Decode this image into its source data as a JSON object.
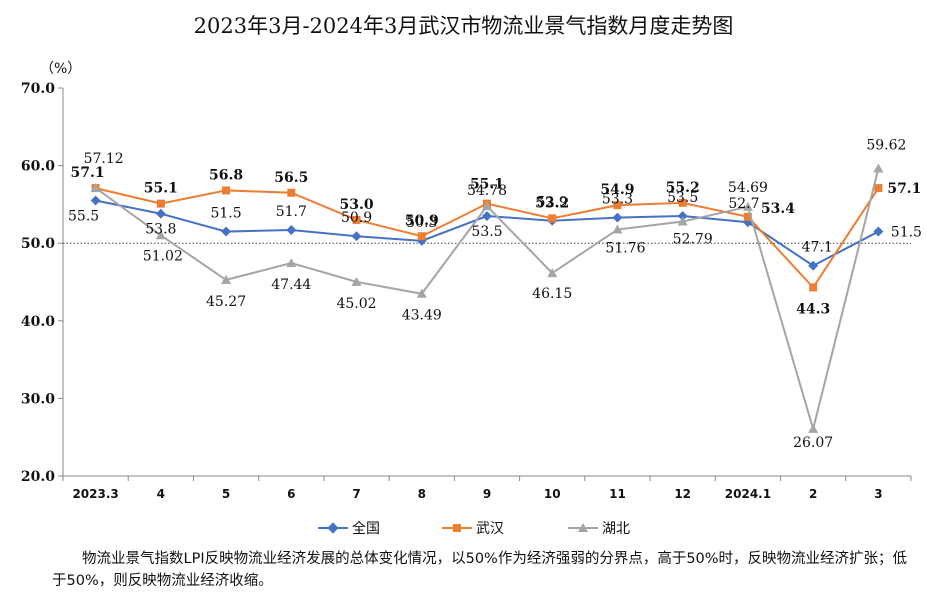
{
  "chart_data": {
    "type": "line",
    "title": "2023年3月-2024年3月武汉市物流业景气指数月度走势图",
    "yunit": "（%）",
    "categories": [
      "2023.3",
      "4",
      "5",
      "6",
      "7",
      "8",
      "9",
      "10",
      "11",
      "12",
      "2024.1",
      "2",
      "3"
    ],
    "ylim": [
      20.0,
      70.0
    ],
    "yticks": [
      "20.0",
      "30.0",
      "40.0",
      "50.0",
      "60.0",
      "70.0"
    ],
    "reference_line": 50,
    "series": [
      {
        "name": "全国",
        "color": "#4472C4",
        "marker": "diamond",
        "values": [
          55.5,
          53.8,
          51.5,
          51.7,
          50.9,
          50.3,
          53.5,
          52.9,
          53.3,
          53.5,
          52.7,
          47.1,
          51.5
        ],
        "labels": [
          "55.5",
          "53.8",
          "51.5",
          "51.7",
          "50.9",
          "50.3",
          "53.5",
          "52.9",
          "53.3",
          "53.5",
          "52.7",
          "47.1",
          "51.5"
        ]
      },
      {
        "name": "武汉",
        "color": "#ED7D31",
        "marker": "square",
        "values": [
          57.1,
          55.1,
          56.8,
          56.5,
          53.0,
          50.9,
          55.1,
          53.2,
          54.9,
          55.2,
          53.4,
          44.3,
          57.1
        ],
        "labels": [
          "57.1",
          "55.1",
          "56.8",
          "56.5",
          "53.0",
          "50.9",
          "55.1",
          "53.2",
          "54.9",
          "55.2",
          "53.4",
          "44.3",
          "57.1"
        ]
      },
      {
        "name": "湖北",
        "color": "#A5A5A5",
        "marker": "triangle",
        "values": [
          57.12,
          51.02,
          45.27,
          47.44,
          45.02,
          43.49,
          54.78,
          46.15,
          51.76,
          52.79,
          54.69,
          26.07,
          59.62
        ],
        "labels": [
          "57.12",
          "51.02",
          "45.27",
          "47.44",
          "45.02",
          "43.49",
          "54.78",
          "46.15",
          "51.76",
          "52.79",
          "54.69",
          "26.07",
          "59.62"
        ]
      }
    ],
    "legend_position": "bottom"
  },
  "note": "物流业景气指数LPI反映物流业经济发展的总体变化情况，以50%作为经济强弱的分界点，高于50%时，反映物流业经济扩张；低于50%，则反映物流业经济收缩。"
}
